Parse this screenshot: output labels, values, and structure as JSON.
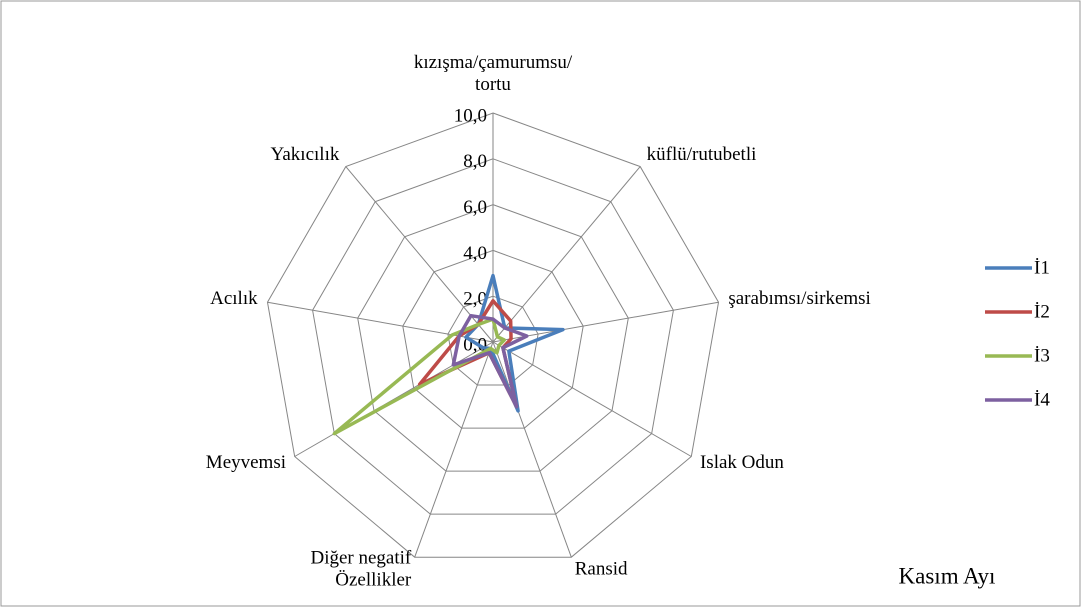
{
  "chart_data": {
    "type": "radar",
    "categories": [
      "kızışma/çamurumsu/\ntortu",
      "küflü/rutubetli",
      "şarabımsı/sirkemsi",
      "Islak Odun",
      "Ransid",
      "Diğer negatif\nÖzellikler",
      "Meyvemsi",
      "Acılık",
      "Yakıcılık"
    ],
    "series": [
      {
        "name": "İ1",
        "color": "#4a7ebb",
        "values": [
          2.9,
          0.8,
          3.1,
          0.8,
          3.2,
          0.3,
          0.5,
          1.2,
          1.0
        ]
      },
      {
        "name": "İ2",
        "color": "#be4b48",
        "values": [
          1.8,
          1.2,
          0.8,
          0.5,
          3.0,
          0.5,
          3.7,
          1.5,
          1.0
        ]
      },
      {
        "name": "İ3",
        "color": "#98b954",
        "values": [
          1.0,
          0.3,
          0.5,
          0.3,
          0.5,
          0.3,
          8.0,
          1.8,
          1.0
        ]
      },
      {
        "name": "İ4",
        "color": "#7d60a0",
        "values": [
          1.0,
          0.8,
          1.5,
          0.5,
          3.0,
          0.5,
          2.0,
          1.5,
          1.5
        ]
      }
    ],
    "ylim": [
      0,
      10
    ],
    "yticks": [
      {
        "value": 0,
        "label": "0,0"
      },
      {
        "value": 2,
        "label": "2,0"
      },
      {
        "value": 4,
        "label": "4,0"
      },
      {
        "value": 6,
        "label": "6,0"
      },
      {
        "value": 8,
        "label": "8,0"
      },
      {
        "value": 10,
        "label": "10,0"
      }
    ],
    "grid": true,
    "legend": "right",
    "annotation": "Kasım Ayı"
  }
}
